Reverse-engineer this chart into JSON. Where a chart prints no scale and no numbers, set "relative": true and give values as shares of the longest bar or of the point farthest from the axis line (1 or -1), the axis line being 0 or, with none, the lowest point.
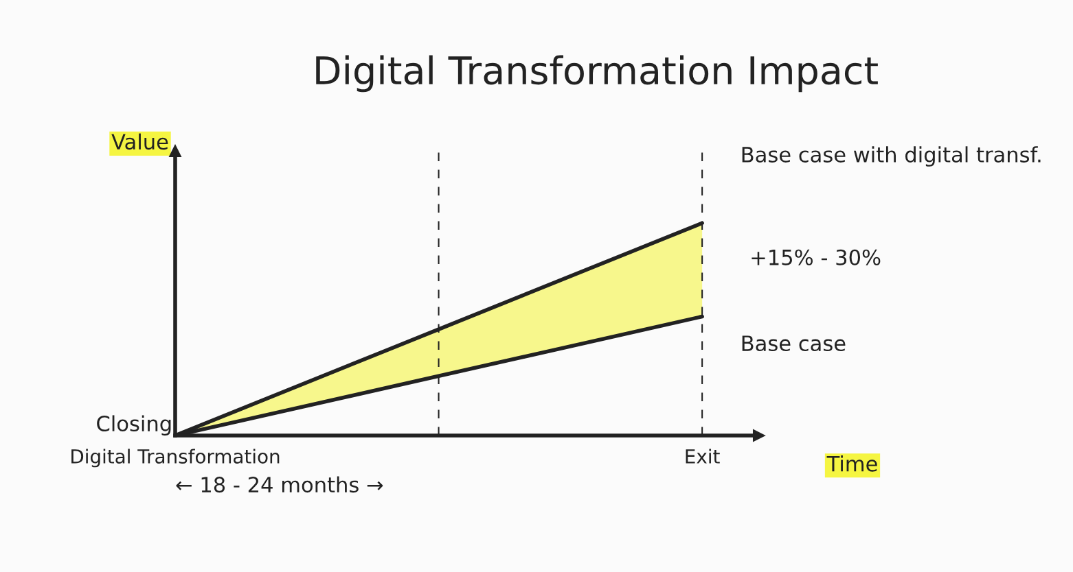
{
  "chart_data": {
    "type": "line",
    "title": "Digital Transformation Impact",
    "xlabel": "Time",
    "ylabel": "Value",
    "relative": true,
    "categories": [
      "Digital Transformation",
      null,
      "Exit"
    ],
    "series": [
      {
        "name": "Base case with digital transf.",
        "color": "#222222",
        "values": [
          0,
          0.5,
          1
        ],
        "lower": [
          0,
          0.28,
          0.56
        ],
        "upper": [
          0,
          0.5,
          1
        ]
      },
      {
        "name": "Base case",
        "color": "#222222",
        "values": [
          0,
          0.28,
          0.56
        ]
      }
    ],
    "annotations": [
      "Closing",
      "+15% - 30%",
      "← 18 - 24 months →"
    ],
    "legend": false,
    "marker": "none",
    "line_style": "solid",
    "grid": "x"
  }
}
